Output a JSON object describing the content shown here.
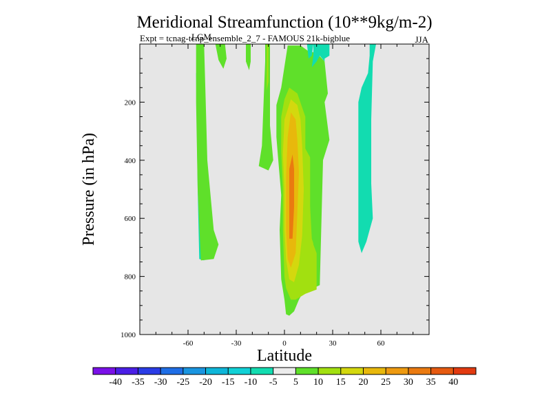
{
  "chart_data": {
    "type": "contour",
    "title": "Meridional Streamfunction (10**9kg/m-2)",
    "subtitle_left": "Expt = tcnag-tcnp_ensemble_2_7 - FAMOUS 21k-bigblue",
    "subtitle_overlay": "LGM",
    "season": "JJA",
    "xlabel": "Latitude",
    "ylabel": "Pressure (in hPa)",
    "xlim": [
      -90,
      90
    ],
    "ylim": [
      1000,
      0
    ],
    "x_ticks": [
      -60,
      -30,
      0,
      30,
      60
    ],
    "x_tick_labels": [
      "-60",
      "-30",
      "0",
      "30",
      "60"
    ],
    "y_ticks": [
      200,
      400,
      600,
      800,
      1000
    ],
    "y_tick_labels": [
      "200",
      "400",
      "600",
      "800",
      "1000"
    ],
    "background_color": "#e6e6e6",
    "colorbar": {
      "levels": [
        -40,
        -35,
        -30,
        -25,
        -20,
        -15,
        -10,
        -5,
        5,
        10,
        15,
        20,
        25,
        30,
        35,
        40
      ],
      "labels": [
        "-40",
        "-35",
        "-30",
        "-25",
        "-20",
        "-15",
        "-10",
        "-5",
        "5",
        "10",
        "15",
        "20",
        "25",
        "30",
        "35",
        "40"
      ],
      "colors": [
        "#7a10e8",
        "#4a1ee6",
        "#2a3ce6",
        "#1f6ee6",
        "#1a95e0",
        "#0eb6d9",
        "#11d1d6",
        "#12dcb0",
        "#ebebeb",
        "#5fe02a",
        "#a2e010",
        "#d4d80e",
        "#e8b80c",
        "#ee9a10",
        "#ea7a10",
        "#e65a10",
        "#e23a10"
      ]
    },
    "regions": [
      {
        "name": "sh-cyan-strip",
        "color": "#12dcb0",
        "points": [
          [
            -55,
            100
          ],
          [
            -52,
            100
          ],
          [
            -51,
            400
          ],
          [
            -49,
            720
          ],
          [
            -50,
            745
          ],
          [
            -53,
            740
          ],
          [
            -54,
            500
          ]
        ]
      },
      {
        "name": "sh-green-strip",
        "color": "#5fe02a",
        "points": [
          [
            -55,
            0
          ],
          [
            -50,
            0
          ],
          [
            -49,
            200
          ],
          [
            -48,
            400
          ],
          [
            -44,
            640
          ],
          [
            -41,
            690
          ],
          [
            -44,
            740
          ],
          [
            -52,
            745
          ],
          [
            -54,
            500
          ],
          [
            -55,
            200
          ]
        ]
      },
      {
        "name": "upper-green-drip-1",
        "color": "#5fe02a",
        "points": [
          [
            -43,
            0
          ],
          [
            -37,
            0
          ],
          [
            -36,
            50
          ],
          [
            -38,
            85
          ],
          [
            -41,
            55
          ]
        ]
      },
      {
        "name": "upper-green-drip-2",
        "color": "#5fe02a",
        "points": [
          [
            -24,
            0
          ],
          [
            -21,
            0
          ],
          [
            -21,
            60
          ],
          [
            -22,
            90
          ],
          [
            -24,
            60
          ]
        ]
      },
      {
        "name": "narrow-green-column",
        "color": "#5fe02a",
        "points": [
          [
            -12,
            0
          ],
          [
            -9,
            0
          ],
          [
            -9,
            150
          ],
          [
            -9,
            280
          ],
          [
            -7,
            400
          ],
          [
            -10,
            435
          ],
          [
            -16,
            420
          ],
          [
            -14,
            350
          ],
          [
            -13,
            200
          ],
          [
            -12,
            60
          ]
        ]
      },
      {
        "name": "narrow-yellow-column",
        "color": "#a2e010",
        "points": [
          [
            -11,
            0
          ],
          [
            -10,
            0
          ],
          [
            -10,
            130
          ],
          [
            -11,
            160
          ],
          [
            -11,
            40
          ]
        ]
      },
      {
        "name": "central-green-cell",
        "color": "#5fe02a",
        "points": [
          [
            2,
            5
          ],
          [
            10,
            5
          ],
          [
            15,
            25
          ],
          [
            20,
            30
          ],
          [
            25,
            60
          ],
          [
            27,
            170
          ],
          [
            25,
            200
          ],
          [
            28,
            330
          ],
          [
            24,
            400
          ],
          [
            22,
            830
          ],
          [
            18,
            840
          ],
          [
            12,
            850
          ],
          [
            9,
            880
          ],
          [
            6,
            920
          ],
          [
            3,
            935
          ],
          [
            1,
            930
          ],
          [
            0,
            880
          ],
          [
            -2,
            810
          ],
          [
            -3,
            640
          ],
          [
            -2,
            520
          ],
          [
            -4,
            390
          ],
          [
            -5,
            320
          ],
          [
            -5,
            210
          ],
          [
            -2,
            150
          ]
        ]
      },
      {
        "name": "central-yellow-cell",
        "color": "#a2e010",
        "points": [
          [
            3,
            150
          ],
          [
            8,
            170
          ],
          [
            13,
            250
          ],
          [
            13,
            360
          ],
          [
            16,
            390
          ],
          [
            17,
            600
          ],
          [
            18,
            690
          ],
          [
            20,
            720
          ],
          [
            20,
            845
          ],
          [
            13,
            860
          ],
          [
            10,
            870
          ],
          [
            7,
            880
          ],
          [
            4,
            880
          ],
          [
            1,
            840
          ],
          [
            0,
            800
          ],
          [
            -1,
            640
          ],
          [
            -1,
            500
          ],
          [
            -2,
            370
          ],
          [
            -2,
            250
          ],
          [
            0,
            190
          ]
        ]
      },
      {
        "name": "central-olive-cell",
        "color": "#d4d80e",
        "points": [
          [
            4,
            190
          ],
          [
            8,
            210
          ],
          [
            10,
            260
          ],
          [
            11,
            350
          ],
          [
            12,
            500
          ],
          [
            11,
            660
          ],
          [
            9,
            760
          ],
          [
            6,
            820
          ],
          [
            3,
            810
          ],
          [
            1,
            740
          ],
          [
            0,
            640
          ],
          [
            0,
            500
          ],
          [
            -1,
            380
          ],
          [
            0,
            260
          ]
        ]
      },
      {
        "name": "central-orange-core",
        "color": "#e8b80c",
        "points": [
          [
            4,
            235
          ],
          [
            7,
            260
          ],
          [
            8,
            330
          ],
          [
            9,
            440
          ],
          [
            8,
            580
          ],
          [
            7,
            720
          ],
          [
            4,
            770
          ],
          [
            2,
            740
          ],
          [
            1,
            640
          ],
          [
            1,
            460
          ],
          [
            2,
            320
          ]
        ]
      },
      {
        "name": "central-red-core",
        "color": "#ea7a10",
        "points": [
          [
            5,
            380
          ],
          [
            6,
            430
          ],
          [
            6,
            560
          ],
          [
            5,
            670
          ],
          [
            3,
            670
          ],
          [
            3,
            550
          ],
          [
            3,
            430
          ]
        ]
      },
      {
        "name": "right-green-tongue",
        "color": "#5fe02a",
        "points": [
          [
            16,
            380
          ],
          [
            22,
            380
          ],
          [
            22,
            600
          ],
          [
            22,
            700
          ],
          [
            20,
            720
          ],
          [
            17,
            670
          ],
          [
            16,
            560
          ]
        ]
      },
      {
        "name": "nh-subtrop-cyan-1",
        "color": "#12dcb0",
        "points": [
          [
            14,
            0
          ],
          [
            18,
            0
          ],
          [
            17,
            40
          ],
          [
            15,
            50
          ]
        ]
      },
      {
        "name": "nh-subtrop-cyan-2",
        "color": "#12dcb0",
        "points": [
          [
            18,
            0
          ],
          [
            28,
            0
          ],
          [
            28,
            40
          ],
          [
            25,
            50
          ],
          [
            25,
            60
          ],
          [
            22,
            40
          ],
          [
            20,
            60
          ],
          [
            17,
            80
          ],
          [
            18,
            40
          ]
        ]
      },
      {
        "name": "nh-cyan-strip",
        "color": "#12dcb0",
        "points": [
          [
            53,
            0
          ],
          [
            57,
            0
          ],
          [
            55,
            60
          ],
          [
            54,
            260
          ],
          [
            54,
            480
          ],
          [
            55,
            600
          ],
          [
            51,
            680
          ],
          [
            48,
            720
          ],
          [
            46,
            680
          ],
          [
            46,
            450
          ],
          [
            46,
            200
          ],
          [
            48,
            150
          ],
          [
            52,
            100
          ],
          [
            53,
            40
          ]
        ]
      }
    ]
  }
}
